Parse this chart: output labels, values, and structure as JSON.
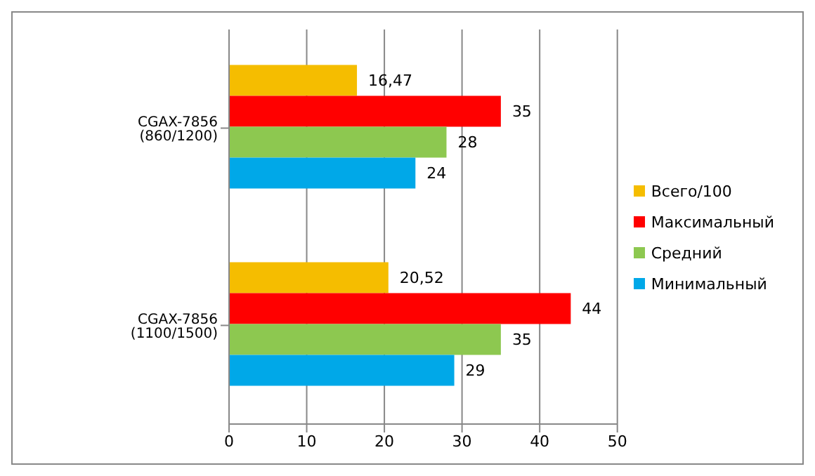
{
  "chart_data": {
    "type": "bar",
    "orientation": "horizontal",
    "categories": [
      "CGAX-7856 (860/1200)",
      "CGAX-7856 (1100/1500)"
    ],
    "series": [
      {
        "name": "Всего/100",
        "color": "#f5bd00",
        "values": [
          16.47,
          20.52
        ],
        "value_labels": [
          "16,47",
          "20,52"
        ]
      },
      {
        "name": "Максимальный",
        "color": "#ff0000",
        "values": [
          35,
          44
        ],
        "value_labels": [
          "35",
          "44"
        ]
      },
      {
        "name": "Средний",
        "color": "#8dc850",
        "values": [
          28,
          35
        ],
        "value_labels": [
          "28",
          "35"
        ]
      },
      {
        "name": "Минимальный",
        "color": "#00a8e8",
        "values": [
          24,
          29
        ],
        "value_labels": [
          "24",
          "29"
        ]
      }
    ],
    "xlim": [
      0,
      50
    ],
    "xticks": [
      0,
      10,
      20,
      30,
      40,
      50
    ],
    "grid": "x",
    "legend": "right"
  }
}
